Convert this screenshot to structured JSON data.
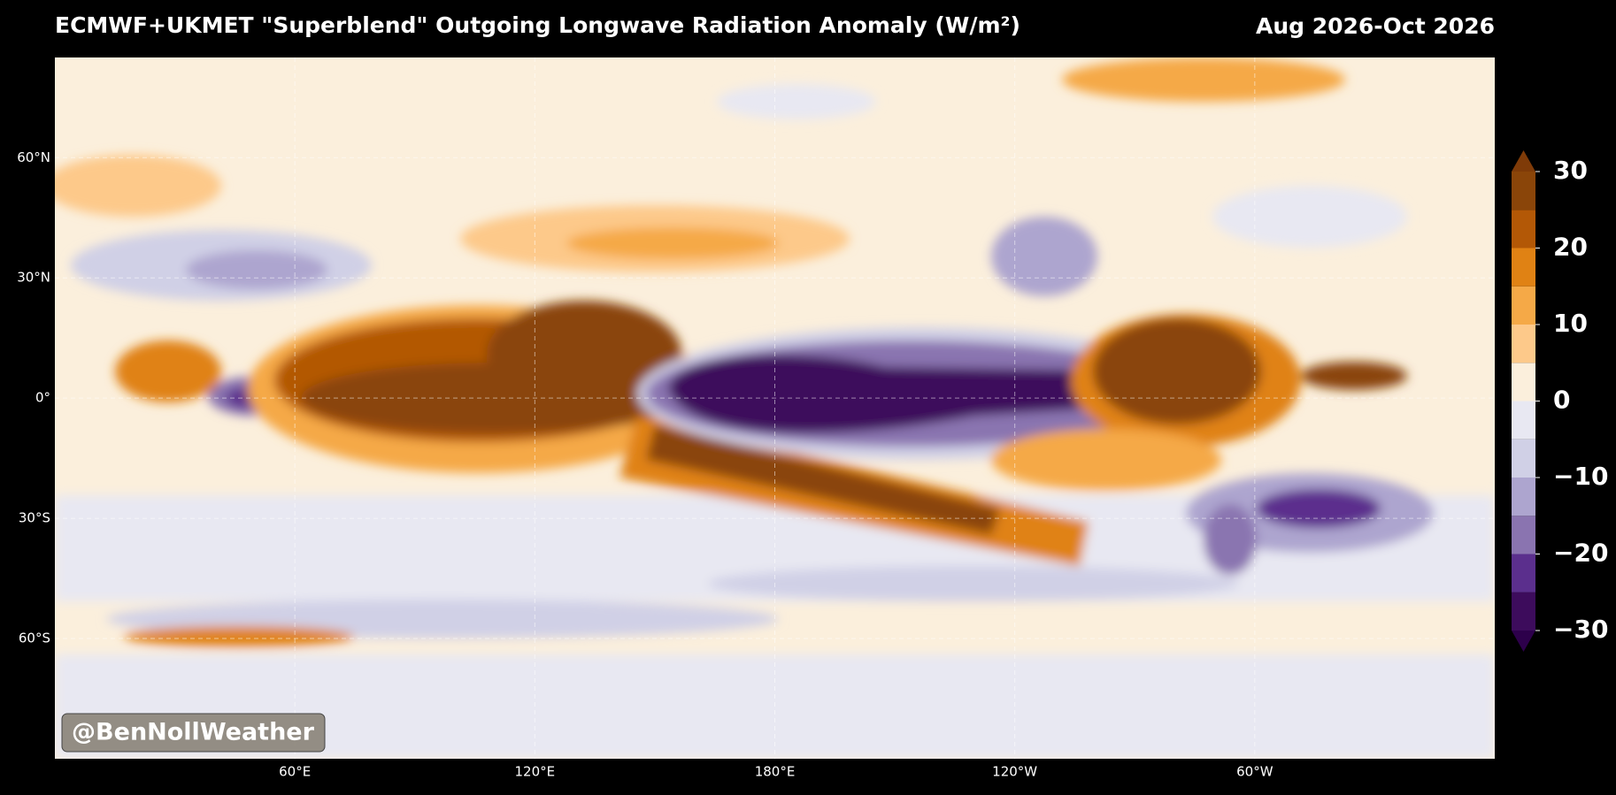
{
  "header": {
    "title": "ECMWF+UKMET \"Superblend\" Outgoing Longwave Radiation Anomaly (W/m²)",
    "date_range": "Aug 2026-Oct 2026"
  },
  "map": {
    "lon_lim": [
      0,
      360
    ],
    "lat_lim": [
      -90,
      85
    ],
    "lon_ticks": [
      {
        "value": 60,
        "label": "60°E"
      },
      {
        "value": 120,
        "label": "120°E"
      },
      {
        "value": 180,
        "label": "180°E"
      },
      {
        "value": 240,
        "label": "120°W"
      },
      {
        "value": 300,
        "label": "60°W"
      }
    ],
    "lat_ticks": [
      {
        "value": 60,
        "label": "60°N"
      },
      {
        "value": 30,
        "label": "30°N"
      },
      {
        "value": 0,
        "label": "0°"
      },
      {
        "value": -30,
        "label": "30°S"
      },
      {
        "value": -60,
        "label": "60°S"
      }
    ]
  },
  "colorbar": {
    "levels": [
      -30,
      -25,
      -20,
      -15,
      -10,
      -5,
      0,
      5,
      10,
      15,
      20,
      25,
      30
    ],
    "colors": [
      "#3d0c5c",
      "#5b2f8d",
      "#8a74b0",
      "#ada5cf",
      "#d0d0e6",
      "#e8e8f2",
      "#fbefdc",
      "#fdc98a",
      "#f5a947",
      "#e08214",
      "#b35806",
      "#8a4509"
    ],
    "extend_colors": [
      "#2d004b",
      "#7f3b08"
    ],
    "ticks": [
      30,
      20,
      10,
      0,
      {
        "value": -10,
        "label": "−10"
      },
      {
        "value": -20,
        "label": "−20"
      },
      {
        "value": -30,
        "label": "−30"
      }
    ]
  },
  "watermark": "@BenNollWeather"
}
